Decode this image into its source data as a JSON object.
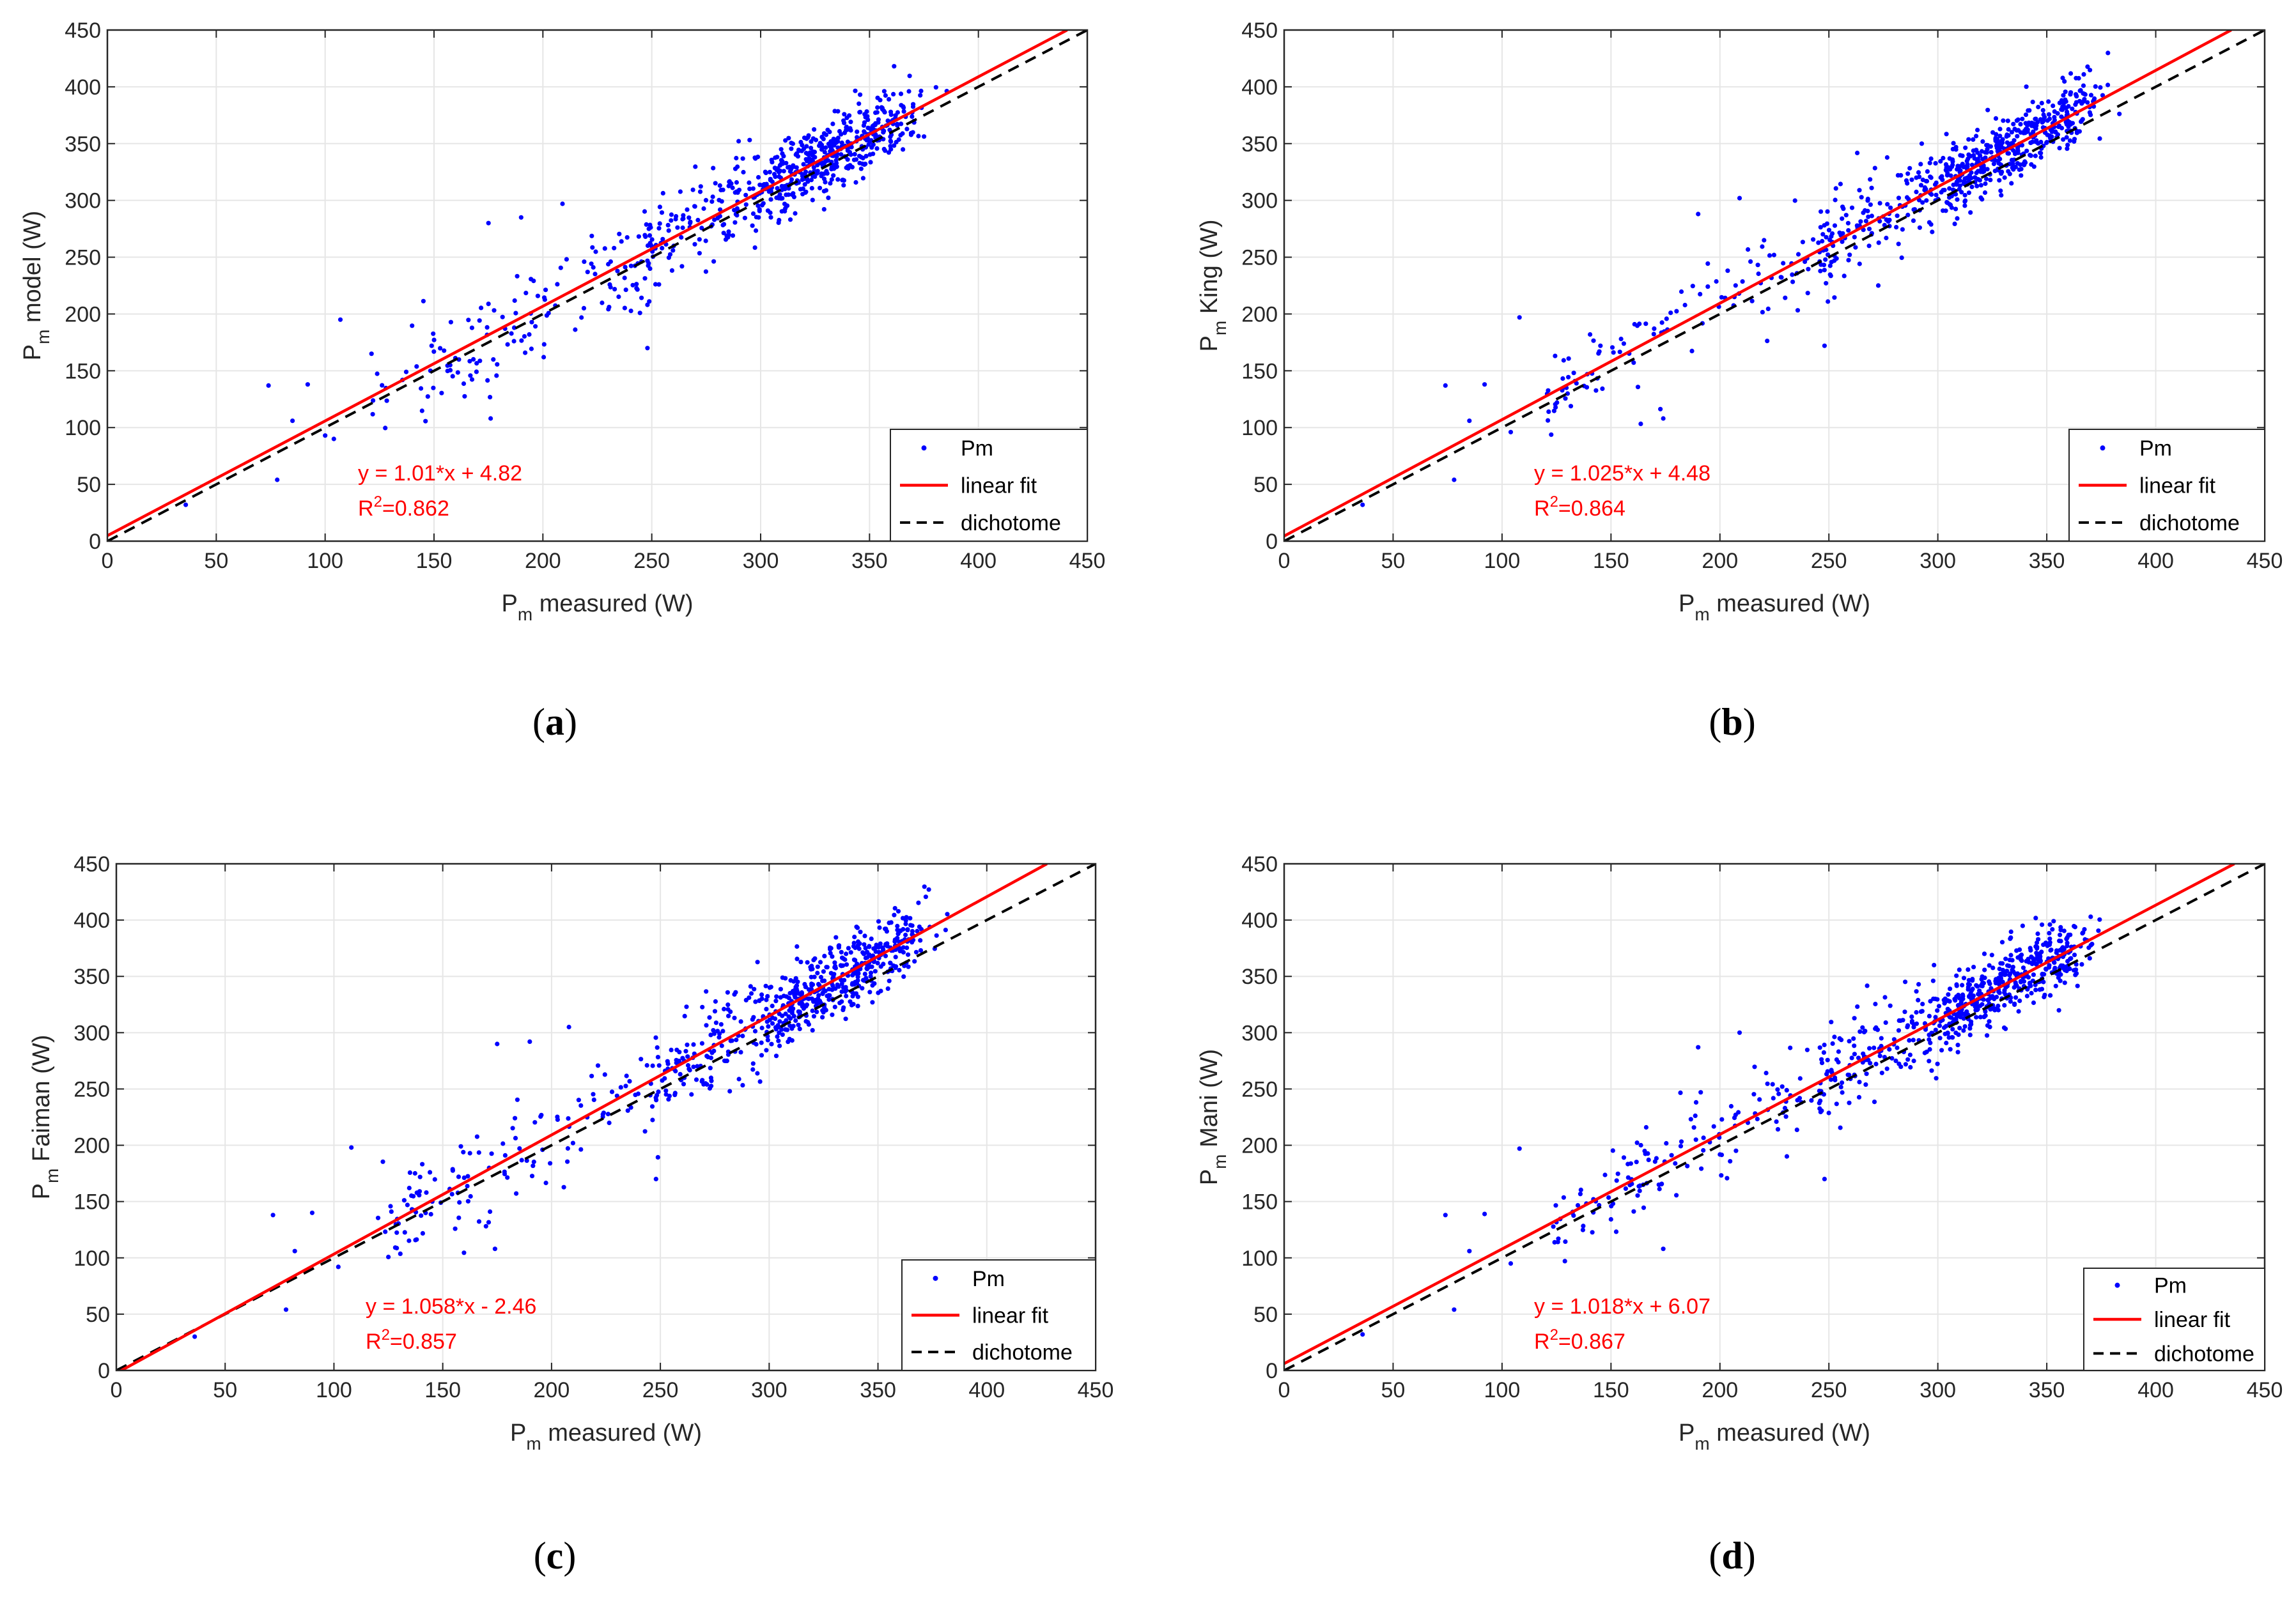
{
  "chart_data": [
    {
      "id": "a",
      "type": "scatter",
      "caption_open": "(",
      "caption_letter": "a",
      "caption_close": ")",
      "xlabel_main": "P",
      "xlabel_sub": "m",
      "xlabel_rest": " measured (W)",
      "ylabel_main": "P",
      "ylabel_sub": "m",
      "ylabel_rest": " model (W)",
      "xlim": [
        0,
        450
      ],
      "ylim": [
        0,
        450
      ],
      "xticks": [
        "0",
        "50",
        "100",
        "150",
        "200",
        "250",
        "300",
        "350",
        "400",
        "450"
      ],
      "yticks": [
        "0",
        "50",
        "100",
        "150",
        "200",
        "250",
        "300",
        "350",
        "400",
        "450"
      ],
      "grid": true,
      "legend": [
        "Pm",
        "linear fit",
        "dichotome"
      ],
      "legend_position": "bottom-right",
      "fit": {
        "slope": 1.01,
        "intercept": 4.82
      },
      "equation": "y = 1.01*x + 4.82",
      "r2_label": "R",
      "r2_sup": "2",
      "r2_value": "=0.862",
      "series": [
        {
          "name": "Pm",
          "color": "#0000ff",
          "seed": 11,
          "slope": 1.01,
          "intercept": 4.82,
          "n": 720
        },
        {
          "name": "linear fit",
          "color": "#ff0000"
        },
        {
          "name": "dichotome",
          "color": "#000000"
        }
      ],
      "outliers": [
        [
          36,
          32
        ],
        [
          78,
          54
        ],
        [
          74,
          137
        ],
        [
          85,
          106
        ],
        [
          92,
          138
        ],
        [
          100,
          93
        ],
        [
          107,
          195
        ],
        [
          104,
          90
        ],
        [
          176,
          108
        ],
        [
          248,
          170
        ],
        [
          209,
          297
        ],
        [
          190,
          285
        ],
        [
          175,
          280
        ]
      ]
    },
    {
      "id": "b",
      "type": "scatter",
      "caption_open": "(",
      "caption_letter": "b",
      "caption_close": ")",
      "xlabel_main": "P",
      "xlabel_sub": "m",
      "xlabel_rest": " measured (W)",
      "ylabel_main": "P",
      "ylabel_sub": "m",
      "ylabel_rest": " King (W)",
      "xlim": [
        0,
        450
      ],
      "ylim": [
        0,
        450
      ],
      "xticks": [
        "0",
        "50",
        "100",
        "150",
        "200",
        "250",
        "300",
        "350",
        "400",
        "450"
      ],
      "yticks": [
        "0",
        "50",
        "100",
        "150",
        "200",
        "250",
        "300",
        "350",
        "400",
        "450"
      ],
      "grid": true,
      "legend": [
        "Pm",
        "linear fit",
        "dichotome"
      ],
      "legend_position": "bottom-right",
      "fit": {
        "slope": 1.025,
        "intercept": 4.48
      },
      "equation": "y = 1.025*x + 4.48",
      "r2_label": "R",
      "r2_sup": "2",
      "r2_value": "=0.864",
      "series": [
        {
          "name": "Pm",
          "color": "#0000ff",
          "seed": 23,
          "slope": 1.025,
          "intercept": 4.48,
          "n": 720
        },
        {
          "name": "linear fit",
          "color": "#ff0000"
        },
        {
          "name": "dichotome",
          "color": "#000000"
        }
      ],
      "outliers": [
        [
          36,
          32
        ],
        [
          78,
          54
        ],
        [
          74,
          137
        ],
        [
          85,
          106
        ],
        [
          92,
          138
        ],
        [
          104,
          96
        ],
        [
          108,
          197
        ],
        [
          174,
          108
        ],
        [
          248,
          172
        ],
        [
          209,
          302
        ],
        [
          190,
          288
        ]
      ]
    },
    {
      "id": "c",
      "type": "scatter",
      "caption_open": "(",
      "caption_letter": "c",
      "caption_close": ")",
      "xlabel_main": "P",
      "xlabel_sub": "m",
      "xlabel_rest": " measured (W)",
      "ylabel_main": "P",
      "ylabel_sub": "m",
      "ylabel_rest": " Faiman (W)",
      "xlim": [
        0,
        450
      ],
      "ylim": [
        0,
        450
      ],
      "xticks": [
        "0",
        "50",
        "100",
        "150",
        "200",
        "250",
        "300",
        "350",
        "400",
        "450"
      ],
      "yticks": [
        "0",
        "50",
        "100",
        "150",
        "200",
        "250",
        "300",
        "350",
        "400",
        "450"
      ],
      "grid": true,
      "legend": [
        "Pm",
        "linear fit",
        "dichotome"
      ],
      "legend_position": "bottom-right",
      "fit": {
        "slope": 1.058,
        "intercept": -2.46
      },
      "equation": "y = 1.058*x - 2.46",
      "r2_label": "R",
      "r2_sup": "2",
      "r2_value": "=0.857",
      "series": [
        {
          "name": "Pm",
          "color": "#0000ff",
          "seed": 37,
          "slope": 1.058,
          "intercept": -2.46,
          "n": 720
        },
        {
          "name": "linear fit",
          "color": "#ff0000"
        },
        {
          "name": "dichotome",
          "color": "#000000"
        }
      ],
      "outliers": [
        [
          36,
          30
        ],
        [
          78,
          54
        ],
        [
          72,
          138
        ],
        [
          82,
          106
        ],
        [
          90,
          140
        ],
        [
          102,
          92
        ],
        [
          108,
          198
        ],
        [
          174,
          108
        ],
        [
          248,
          170
        ],
        [
          208,
          305
        ],
        [
          190,
          292
        ],
        [
          175,
          290
        ]
      ]
    },
    {
      "id": "d",
      "type": "scatter",
      "caption_open": "(",
      "caption_letter": "d",
      "caption_close": ")",
      "xlabel_main": "P",
      "xlabel_sub": "m",
      "xlabel_rest": " measured (W)",
      "ylabel_main": "P",
      "ylabel_sub": "m",
      "ylabel_rest": " Mani (W)",
      "xlim": [
        0,
        450
      ],
      "ylim": [
        0,
        450
      ],
      "xticks": [
        "0",
        "50",
        "100",
        "150",
        "200",
        "250",
        "300",
        "350",
        "400",
        "450"
      ],
      "yticks": [
        "0",
        "50",
        "100",
        "150",
        "200",
        "250",
        "300",
        "350",
        "400",
        "450"
      ],
      "grid": true,
      "legend": [
        "Pm",
        "linear fit",
        "dichotome"
      ],
      "legend_position": "bottom-right",
      "fit": {
        "slope": 1.018,
        "intercept": 6.07
      },
      "equation": "y = 1.018*x + 6.07",
      "r2_label": "R",
      "r2_sup": "2",
      "r2_value": "=0.867",
      "series": [
        {
          "name": "Pm",
          "color": "#0000ff",
          "seed": 53,
          "slope": 1.018,
          "intercept": 6.07,
          "n": 720
        },
        {
          "name": "linear fit",
          "color": "#ff0000"
        },
        {
          "name": "dichotome",
          "color": "#000000"
        }
      ],
      "outliers": [
        [
          36,
          32
        ],
        [
          78,
          54
        ],
        [
          74,
          138
        ],
        [
          85,
          106
        ],
        [
          92,
          139
        ],
        [
          104,
          95
        ],
        [
          108,
          197
        ],
        [
          174,
          108
        ],
        [
          248,
          170
        ],
        [
          209,
          300
        ],
        [
          190,
          287
        ]
      ]
    }
  ]
}
